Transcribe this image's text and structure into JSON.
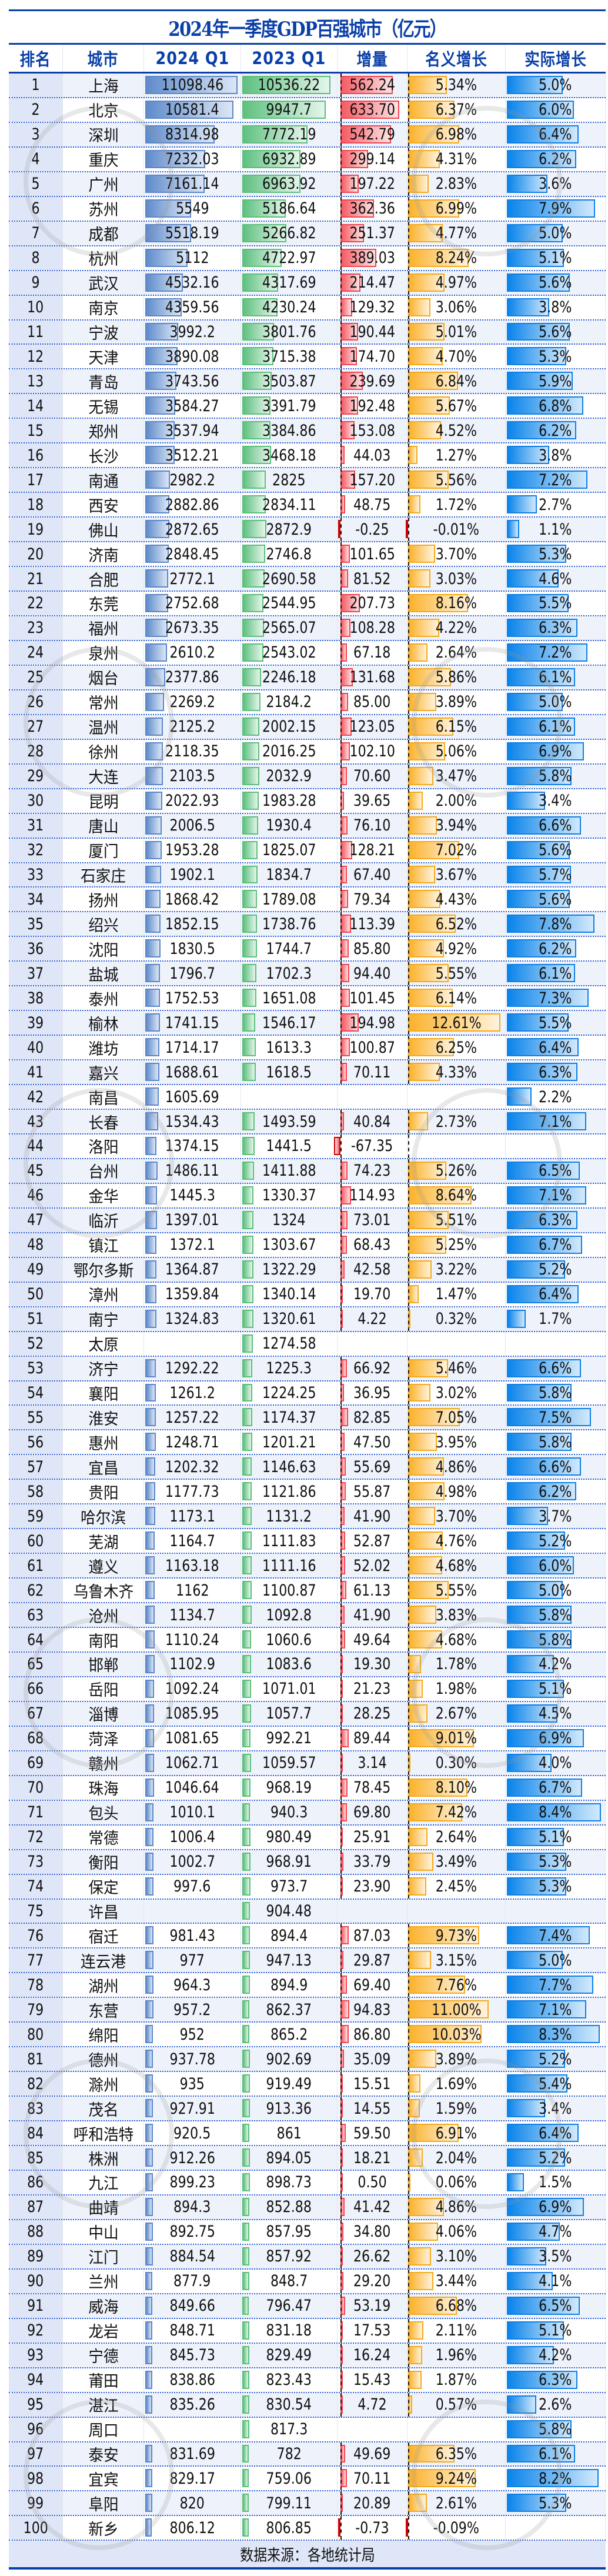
{
  "title": "2024年一季度GDP百强城市（亿元）",
  "headers": [
    "排名",
    "城市",
    "2024 Q1",
    "2023 Q1",
    "增量",
    "名义增长",
    "实际增长"
  ],
  "footer": "数据来源：各地统计局",
  "colors": {
    "title_blue": "#0a3fa8",
    "bar_2024": "#5f8bcb",
    "bar_2023": "#5fc080",
    "bar_increase": "#f55a63",
    "bar_nominal": "#fbb22c",
    "bar_real": "#0a84ea",
    "row_alt": "#eef2fb",
    "rank_bg": "#dfe6f7"
  },
  "chart_data": {
    "type": "table",
    "title": "2024年一季度GDP百强城市（亿元）",
    "columns": [
      "排名",
      "城市",
      "2024 Q1",
      "2023 Q1",
      "增量",
      "名义增长",
      "实际增长"
    ],
    "source": "数据来源：各地统计局",
    "rows": [
      [
        1,
        "上海",
        "11098.46",
        "10536.22",
        "562.24",
        "5.34%",
        "5.0%"
      ],
      [
        2,
        "北京",
        "10581.4",
        "9947.7",
        "633.70",
        "6.37%",
        "6.0%"
      ],
      [
        3,
        "深圳",
        "8314.98",
        "7772.19",
        "542.79",
        "6.98%",
        "6.4%"
      ],
      [
        4,
        "重庆",
        "7232.03",
        "6932.89",
        "299.14",
        "4.31%",
        "6.2%"
      ],
      [
        5,
        "广州",
        "7161.14",
        "6963.92",
        "197.22",
        "2.83%",
        "3.6%"
      ],
      [
        6,
        "苏州",
        "5549",
        "5186.64",
        "362.36",
        "6.99%",
        "7.9%"
      ],
      [
        7,
        "成都",
        "5518.19",
        "5266.82",
        "251.37",
        "4.77%",
        "5.0%"
      ],
      [
        8,
        "杭州",
        "5112",
        "4722.97",
        "389.03",
        "8.24%",
        "5.1%"
      ],
      [
        9,
        "武汉",
        "4532.16",
        "4317.69",
        "214.47",
        "4.97%",
        "5.6%"
      ],
      [
        10,
        "南京",
        "4359.56",
        "4230.24",
        "129.32",
        "3.06%",
        "3.8%"
      ],
      [
        11,
        "宁波",
        "3992.2",
        "3801.76",
        "190.44",
        "5.01%",
        "5.6%"
      ],
      [
        12,
        "天津",
        "3890.08",
        "3715.38",
        "174.70",
        "4.70%",
        "5.3%"
      ],
      [
        13,
        "青岛",
        "3743.56",
        "3503.87",
        "239.69",
        "6.84%",
        "5.9%"
      ],
      [
        14,
        "无锡",
        "3584.27",
        "3391.79",
        "192.48",
        "5.67%",
        "6.8%"
      ],
      [
        15,
        "郑州",
        "3537.94",
        "3384.86",
        "153.08",
        "4.52%",
        "6.2%"
      ],
      [
        16,
        "长沙",
        "3512.21",
        "3468.18",
        "44.03",
        "1.27%",
        "3.8%"
      ],
      [
        17,
        "南通",
        "2982.2",
        "2825",
        "157.20",
        "5.56%",
        "7.2%"
      ],
      [
        18,
        "西安",
        "2882.86",
        "2834.11",
        "48.75",
        "1.72%",
        "2.7%"
      ],
      [
        19,
        "佛山",
        "2872.65",
        "2872.9",
        "-0.25",
        "-0.01%",
        "1.1%"
      ],
      [
        20,
        "济南",
        "2848.45",
        "2746.8",
        "101.65",
        "3.70%",
        "5.3%"
      ],
      [
        21,
        "合肥",
        "2772.1",
        "2690.58",
        "81.52",
        "3.03%",
        "4.6%"
      ],
      [
        22,
        "东莞",
        "2752.68",
        "2544.95",
        "207.73",
        "8.16%",
        "5.5%"
      ],
      [
        23,
        "福州",
        "2673.35",
        "2565.07",
        "108.28",
        "4.22%",
        "6.3%"
      ],
      [
        24,
        "泉州",
        "2610.2",
        "2543.02",
        "67.18",
        "2.64%",
        "7.2%"
      ],
      [
        25,
        "烟台",
        "2377.86",
        "2246.18",
        "131.68",
        "5.86%",
        "6.1%"
      ],
      [
        26,
        "常州",
        "2269.2",
        "2184.2",
        "85.00",
        "3.89%",
        "5.0%"
      ],
      [
        27,
        "温州",
        "2125.2",
        "2002.15",
        "123.05",
        "6.15%",
        "6.1%"
      ],
      [
        28,
        "徐州",
        "2118.35",
        "2016.25",
        "102.10",
        "5.06%",
        "6.9%"
      ],
      [
        29,
        "大连",
        "2103.5",
        "2032.9",
        "70.60",
        "3.47%",
        "5.8%"
      ],
      [
        30,
        "昆明",
        "2022.93",
        "1983.28",
        "39.65",
        "2.00%",
        "3.4%"
      ],
      [
        31,
        "唐山",
        "2006.5",
        "1930.4",
        "76.10",
        "3.94%",
        "6.6%"
      ],
      [
        32,
        "厦门",
        "1953.28",
        "1825.07",
        "128.21",
        "7.02%",
        "5.6%"
      ],
      [
        33,
        "石家庄",
        "1902.1",
        "1834.7",
        "67.40",
        "3.67%",
        "5.7%"
      ],
      [
        34,
        "扬州",
        "1868.42",
        "1789.08",
        "79.34",
        "4.43%",
        "5.6%"
      ],
      [
        35,
        "绍兴",
        "1852.15",
        "1738.76",
        "113.39",
        "6.52%",
        "7.8%"
      ],
      [
        36,
        "沈阳",
        "1830.5",
        "1744.7",
        "85.80",
        "4.92%",
        "6.2%"
      ],
      [
        37,
        "盐城",
        "1796.7",
        "1702.3",
        "94.40",
        "5.55%",
        "6.1%"
      ],
      [
        38,
        "泰州",
        "1752.53",
        "1651.08",
        "101.45",
        "6.14%",
        "7.3%"
      ],
      [
        39,
        "榆林",
        "1741.15",
        "1546.17",
        "194.98",
        "12.61%",
        "5.5%"
      ],
      [
        40,
        "潍坊",
        "1714.17",
        "1613.3",
        "100.87",
        "6.25%",
        "6.4%"
      ],
      [
        41,
        "嘉兴",
        "1688.61",
        "1618.5",
        "70.11",
        "4.33%",
        "6.3%"
      ],
      [
        42,
        "南昌",
        "1605.69",
        "",
        "",
        "",
        "2.2%"
      ],
      [
        43,
        "长春",
        "1534.43",
        "1493.59",
        "40.84",
        "2.73%",
        "7.1%"
      ],
      [
        44,
        "洛阳",
        "1374.15",
        "1441.5",
        "-67.35",
        "",
        ""
      ],
      [
        45,
        "台州",
        "1486.11",
        "1411.88",
        "74.23",
        "5.26%",
        "6.5%"
      ],
      [
        46,
        "金华",
        "1445.3",
        "1330.37",
        "114.93",
        "8.64%",
        "7.1%"
      ],
      [
        47,
        "临沂",
        "1397.01",
        "1324",
        "73.01",
        "5.51%",
        "6.3%"
      ],
      [
        48,
        "镇江",
        "1372.1",
        "1303.67",
        "68.43",
        "5.25%",
        "6.7%"
      ],
      [
        49,
        "鄂尔多斯",
        "1364.87",
        "1322.29",
        "42.58",
        "3.22%",
        "5.2%"
      ],
      [
        50,
        "漳州",
        "1359.84",
        "1340.14",
        "19.70",
        "1.47%",
        "6.4%"
      ],
      [
        51,
        "南宁",
        "1324.83",
        "1320.61",
        "4.22",
        "0.32%",
        "1.7%"
      ],
      [
        52,
        "太原",
        "",
        "1274.58",
        "",
        "",
        ""
      ],
      [
        53,
        "济宁",
        "1292.22",
        "1225.3",
        "66.92",
        "5.46%",
        "6.6%"
      ],
      [
        54,
        "襄阳",
        "1261.2",
        "1224.25",
        "36.95",
        "3.02%",
        "5.8%"
      ],
      [
        55,
        "淮安",
        "1257.22",
        "1174.37",
        "82.85",
        "7.05%",
        "7.5%"
      ],
      [
        56,
        "惠州",
        "1248.71",
        "1201.21",
        "47.50",
        "3.95%",
        "5.8%"
      ],
      [
        57,
        "宜昌",
        "1202.32",
        "1146.63",
        "55.69",
        "4.86%",
        "6.6%"
      ],
      [
        58,
        "贵阳",
        "1177.73",
        "1121.86",
        "55.87",
        "4.98%",
        "6.2%"
      ],
      [
        59,
        "哈尔滨",
        "1173.1",
        "1131.2",
        "41.90",
        "3.70%",
        "3.7%"
      ],
      [
        60,
        "芜湖",
        "1164.7",
        "1111.83",
        "52.87",
        "4.76%",
        "5.2%"
      ],
      [
        61,
        "遵义",
        "1163.18",
        "1111.16",
        "52.02",
        "4.68%",
        "6.0%"
      ],
      [
        62,
        "乌鲁木齐",
        "1162",
        "1100.87",
        "61.13",
        "5.55%",
        "5.0%"
      ],
      [
        63,
        "沧州",
        "1134.7",
        "1092.8",
        "41.90",
        "3.83%",
        "5.8%"
      ],
      [
        64,
        "南阳",
        "1110.24",
        "1060.6",
        "49.64",
        "4.68%",
        "5.8%"
      ],
      [
        65,
        "邯郸",
        "1102.9",
        "1083.6",
        "19.30",
        "1.78%",
        "4.2%"
      ],
      [
        66,
        "岳阳",
        "1092.24",
        "1071.01",
        "21.23",
        "1.98%",
        "5.1%"
      ],
      [
        67,
        "淄博",
        "1085.95",
        "1057.7",
        "28.25",
        "2.67%",
        "4.5%"
      ],
      [
        68,
        "菏泽",
        "1081.65",
        "992.21",
        "89.44",
        "9.01%",
        "6.9%"
      ],
      [
        69,
        "赣州",
        "1062.71",
        "1059.57",
        "3.14",
        "0.30%",
        "4.0%"
      ],
      [
        70,
        "珠海",
        "1046.64",
        "968.19",
        "78.45",
        "8.10%",
        "6.7%"
      ],
      [
        71,
        "包头",
        "1010.1",
        "940.3",
        "69.80",
        "7.42%",
        "8.4%"
      ],
      [
        72,
        "常德",
        "1006.4",
        "980.49",
        "25.91",
        "2.64%",
        "5.1%"
      ],
      [
        73,
        "衡阳",
        "1002.7",
        "968.91",
        "33.79",
        "3.49%",
        "5.3%"
      ],
      [
        74,
        "保定",
        "997.6",
        "973.7",
        "23.90",
        "2.45%",
        "5.3%"
      ],
      [
        75,
        "许昌",
        "",
        "904.48",
        "",
        "",
        ""
      ],
      [
        76,
        "宿迁",
        "981.43",
        "894.4",
        "87.03",
        "9.73%",
        "7.4%"
      ],
      [
        77,
        "连云港",
        "977",
        "947.13",
        "29.87",
        "3.15%",
        "5.0%"
      ],
      [
        78,
        "湖州",
        "964.3",
        "894.9",
        "69.40",
        "7.76%",
        "7.7%"
      ],
      [
        79,
        "东营",
        "957.2",
        "862.37",
        "94.83",
        "11.00%",
        "7.1%"
      ],
      [
        80,
        "绵阳",
        "952",
        "865.2",
        "86.80",
        "10.03%",
        "8.3%"
      ],
      [
        81,
        "德州",
        "937.78",
        "902.69",
        "35.09",
        "3.89%",
        "5.2%"
      ],
      [
        82,
        "滁州",
        "935",
        "919.49",
        "15.51",
        "1.69%",
        "5.4%"
      ],
      [
        83,
        "茂名",
        "927.91",
        "913.36",
        "14.55",
        "1.59%",
        "3.4%"
      ],
      [
        84,
        "呼和浩特",
        "920.5",
        "861",
        "59.50",
        "6.91%",
        "6.4%"
      ],
      [
        85,
        "株洲",
        "912.26",
        "894.05",
        "18.21",
        "2.04%",
        "5.2%"
      ],
      [
        86,
        "九江",
        "899.23",
        "898.73",
        "0.50",
        "0.06%",
        "1.5%"
      ],
      [
        87,
        "曲靖",
        "894.3",
        "852.88",
        "41.42",
        "4.86%",
        "6.9%"
      ],
      [
        88,
        "中山",
        "892.75",
        "857.95",
        "34.80",
        "4.06%",
        "4.7%"
      ],
      [
        89,
        "江门",
        "884.54",
        "857.92",
        "26.62",
        "3.10%",
        "3.5%"
      ],
      [
        90,
        "兰州",
        "877.9",
        "848.7",
        "29.20",
        "3.44%",
        "4.1%"
      ],
      [
        91,
        "威海",
        "849.66",
        "796.47",
        "53.19",
        "6.68%",
        "6.5%"
      ],
      [
        92,
        "龙岩",
        "848.71",
        "831.18",
        "17.53",
        "2.11%",
        "5.1%"
      ],
      [
        93,
        "宁德",
        "845.73",
        "829.49",
        "16.24",
        "1.96%",
        "4.2%"
      ],
      [
        94,
        "莆田",
        "838.86",
        "823.43",
        "15.43",
        "1.87%",
        "6.3%"
      ],
      [
        95,
        "湛江",
        "835.26",
        "830.54",
        "4.72",
        "0.57%",
        "2.6%"
      ],
      [
        96,
        "周口",
        "",
        "817.3",
        "",
        "",
        "5.8%"
      ],
      [
        97,
        "泰安",
        "831.69",
        "782",
        "49.69",
        "6.35%",
        "6.1%"
      ],
      [
        98,
        "宜宾",
        "829.17",
        "759.06",
        "70.11",
        "9.24%",
        "8.2%"
      ],
      [
        99,
        "阜阳",
        "820",
        "799.11",
        "20.89",
        "2.61%",
        "5.3%"
      ],
      [
        100,
        "新乡",
        "806.12",
        "806.85",
        "-0.73",
        "-0.09%",
        ""
      ]
    ]
  }
}
